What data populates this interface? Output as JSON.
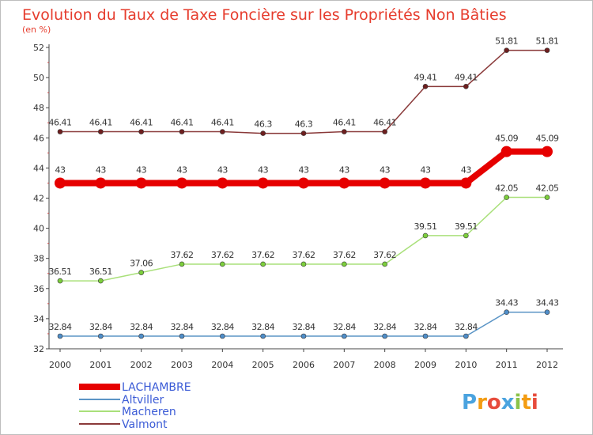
{
  "chart_data": {
    "type": "line",
    "title": "Evolution du Taux de Taxe Foncière sur les Propriétés Non Bâties",
    "subtitle": "(en %)",
    "categories": [
      "2000",
      "2001",
      "2002",
      "2003",
      "2004",
      "2005",
      "2006",
      "2007",
      "2008",
      "2009",
      "2010",
      "2011",
      "2012"
    ],
    "ylim": [
      32,
      52
    ],
    "yticks": [
      32,
      34,
      36,
      38,
      40,
      42,
      44,
      46,
      48,
      50,
      52
    ],
    "series": [
      {
        "name": "LACHAMBRE",
        "color": "#e60000",
        "emphasis": true,
        "values": [
          43,
          43,
          43,
          43,
          43,
          43,
          43,
          43,
          43,
          43,
          43,
          45.09,
          45.09
        ],
        "labels": [
          "43",
          "43",
          "43",
          "43",
          "43",
          "43",
          "43",
          "43",
          "43",
          "43",
          "43",
          "45.09",
          "45.09"
        ]
      },
      {
        "name": "Altviller",
        "color": "#5b95c6",
        "marker": "#4f8ec9",
        "values": [
          32.84,
          32.84,
          32.84,
          32.84,
          32.84,
          32.84,
          32.84,
          32.84,
          32.84,
          32.84,
          32.84,
          34.43,
          34.43
        ],
        "labels": [
          "32.84",
          "32.84",
          "32.84",
          "32.84",
          "32.84",
          "32.84",
          "32.84",
          "32.84",
          "32.84",
          "32.84",
          "32.84",
          "34.43",
          "34.43"
        ]
      },
      {
        "name": "Macheren",
        "color": "#a9e07a",
        "marker": "#7ccf3c",
        "values": [
          36.51,
          36.51,
          37.06,
          37.62,
          37.62,
          37.62,
          37.62,
          37.62,
          37.62,
          39.51,
          39.51,
          42.05,
          42.05
        ],
        "labels": [
          "36.51",
          "36.51",
          "37.06",
          "37.62",
          "37.62",
          "37.62",
          "37.62",
          "37.62",
          "37.62",
          "39.51",
          "39.51",
          "42.05",
          "42.05"
        ]
      },
      {
        "name": "Valmont",
        "color": "#8a3a3a",
        "marker": "#6e1f1f",
        "values": [
          46.41,
          46.41,
          46.41,
          46.41,
          46.41,
          46.3,
          46.3,
          46.41,
          46.41,
          49.41,
          49.41,
          51.81,
          51.81
        ],
        "labels": [
          "46.41",
          "46.41",
          "46.41",
          "46.41",
          "46.41",
          "46.3",
          "46.3",
          "46.41",
          "46.41",
          "49.41",
          "49.41",
          "51.81",
          "51.81"
        ]
      }
    ],
    "legend_position": "bottom-left",
    "grid": false
  },
  "logo": {
    "text": "Proxiti"
  }
}
